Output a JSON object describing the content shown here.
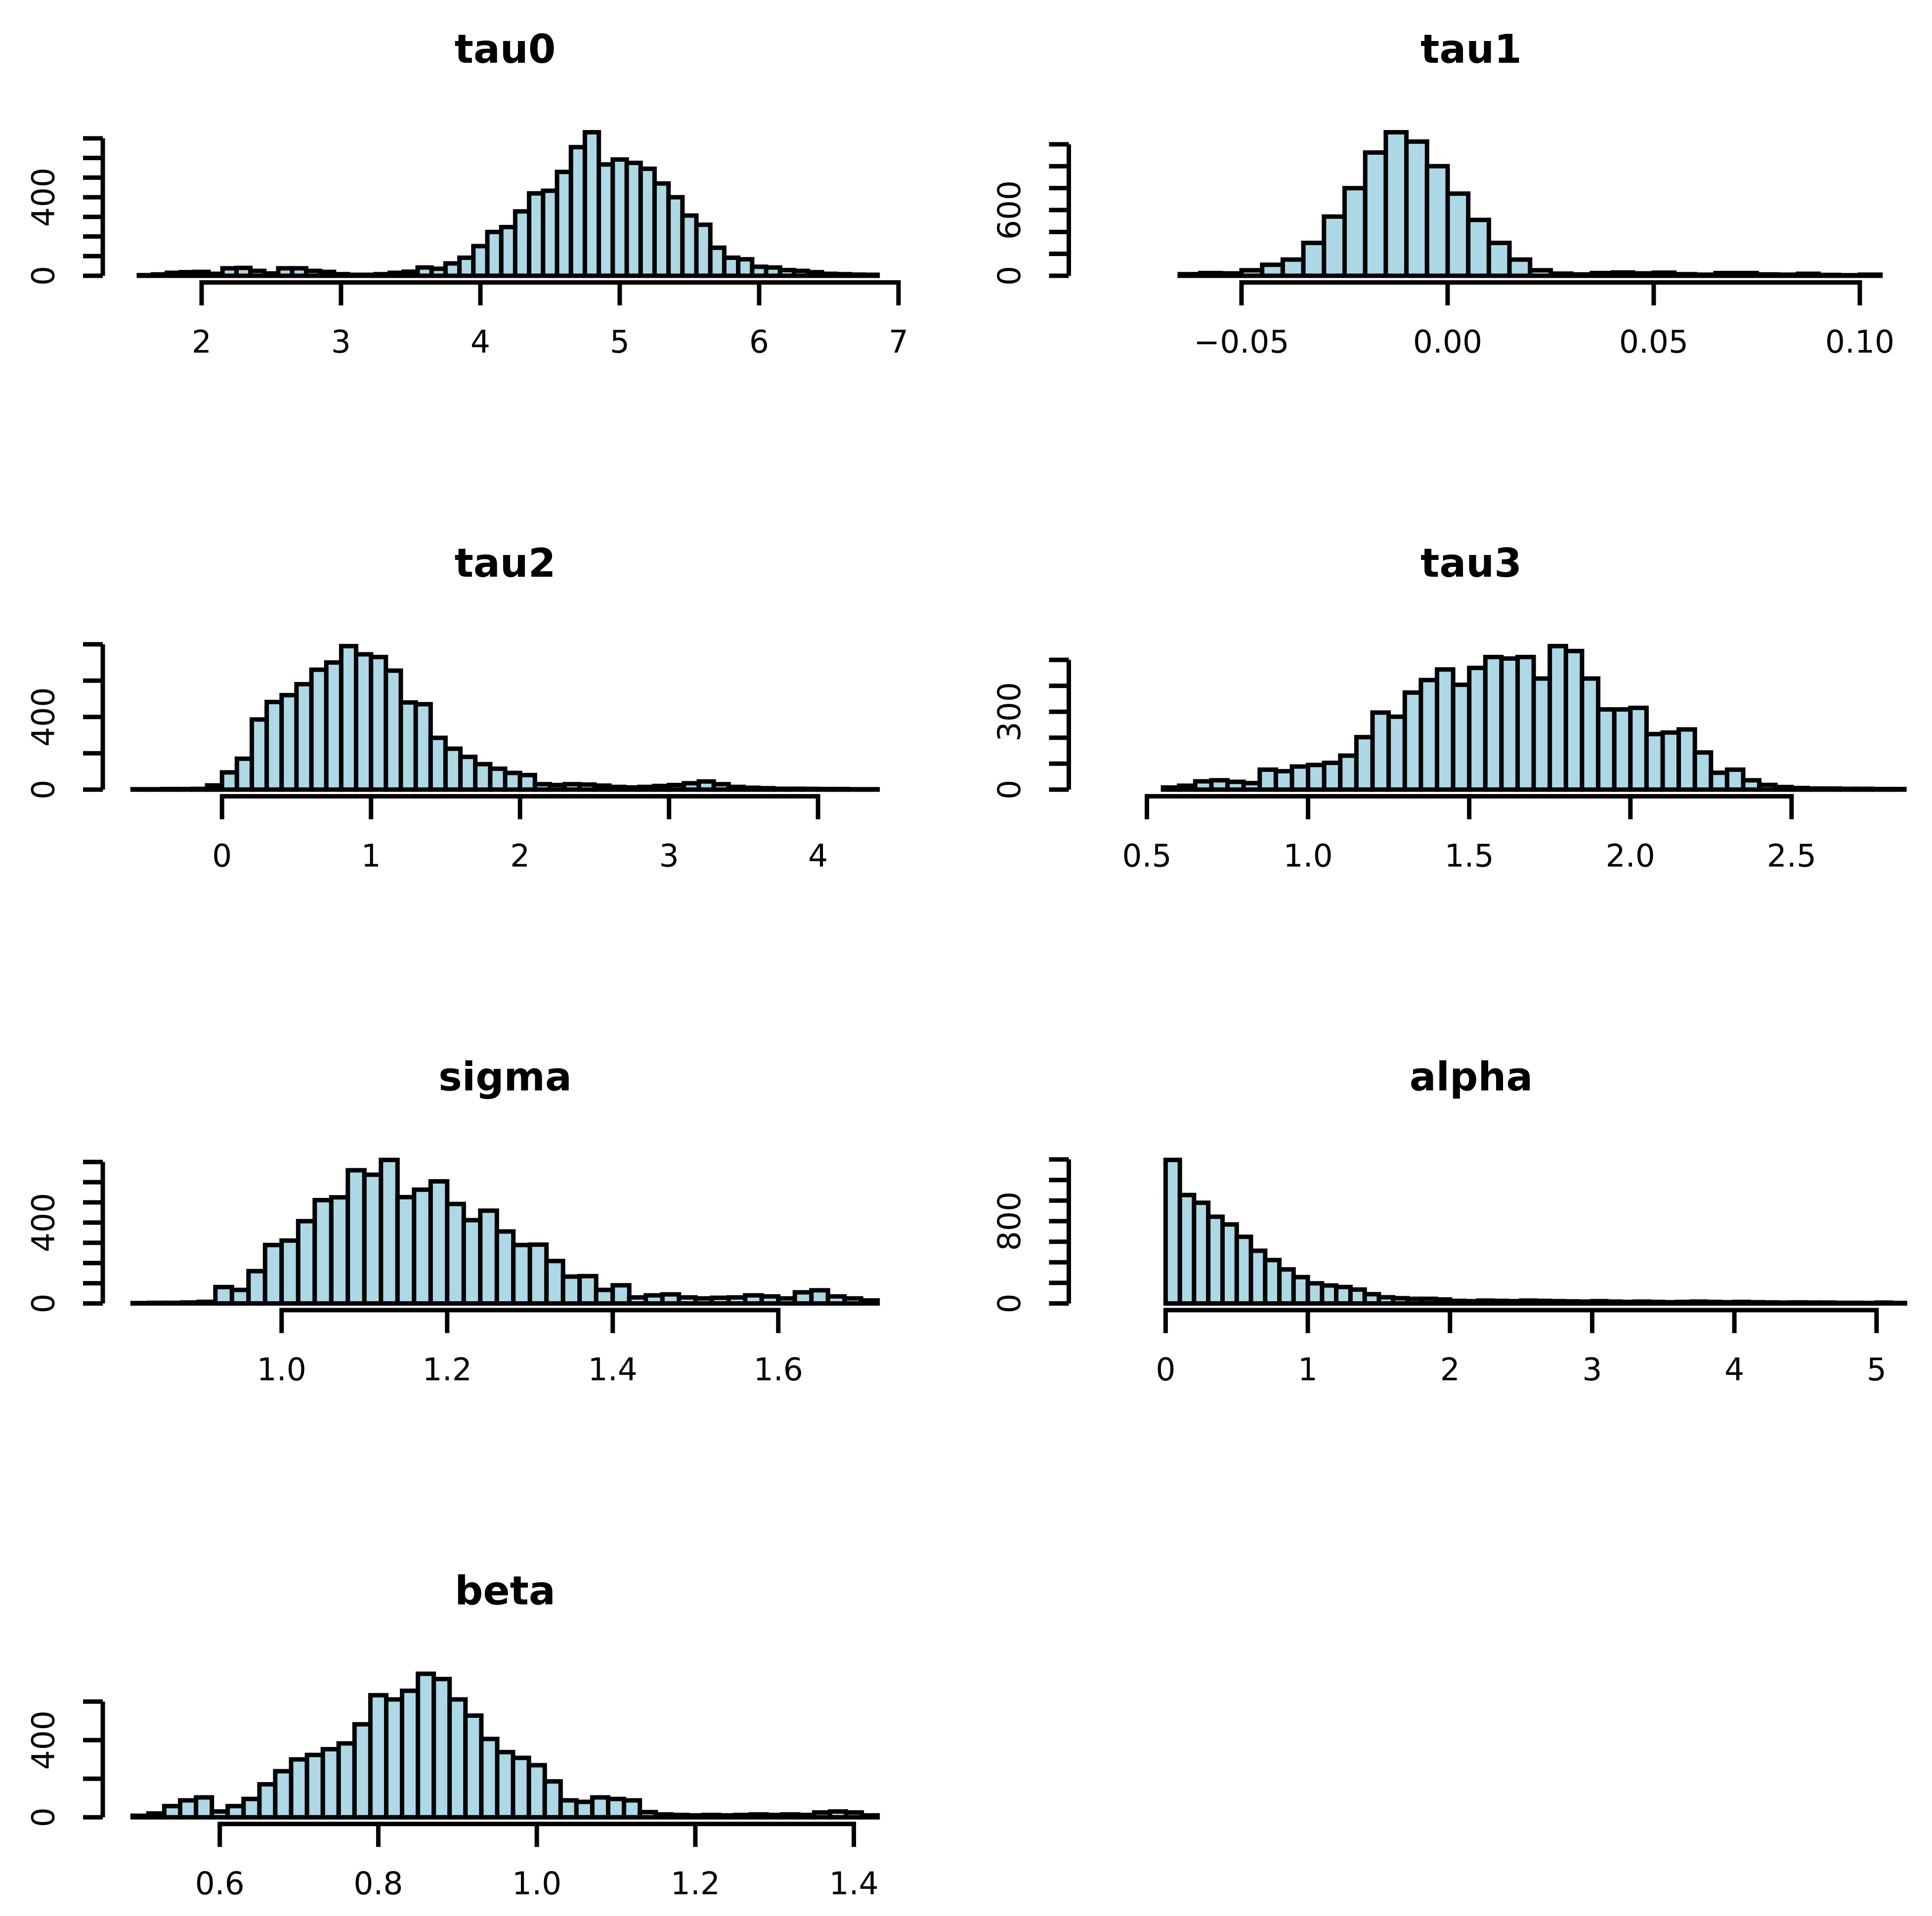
{
  "figure": {
    "background_color": "#ffffff",
    "bar_fill_color": "#ADD8E6",
    "bar_stroke_color": "#000000",
    "axis_color": "#000000",
    "text_color": "#000000"
  },
  "chart_data": [
    {
      "type": "bar",
      "subtype": "histogram",
      "title": "tau0",
      "row": 0,
      "col": 0,
      "bin_start": 1.55,
      "bin_width": 0.1,
      "counts": [
        3,
        7,
        15,
        18,
        20,
        10,
        38,
        40,
        25,
        12,
        38,
        38,
        25,
        20,
        8,
        5,
        5,
        8,
        15,
        21,
        42,
        36,
        63,
        92,
        151,
        223,
        248,
        328,
        420,
        433,
        529,
        655,
        731,
        567,
        592,
        575,
        545,
        470,
        400,
        307,
        260,
        143,
        92,
        84,
        46,
        42,
        29,
        25,
        18,
        10,
        8,
        6,
        5
      ],
      "xlim": [
        1.291,
        7.064
      ],
      "x_ticks": [
        {
          "v": 2,
          "label": "2"
        },
        {
          "v": 3,
          "label": "3"
        },
        {
          "v": 4,
          "label": "4"
        },
        {
          "v": 5,
          "label": "5"
        },
        {
          "v": 6,
          "label": "6"
        },
        {
          "v": 7,
          "label": "7"
        }
      ],
      "y_tick_step": 100,
      "y_tick_max": 700,
      "y_tick_labels": [
        {
          "v": 0,
          "label": "0"
        },
        {
          "v": 400,
          "label": "400"
        }
      ]
    },
    {
      "type": "bar",
      "subtype": "histogram",
      "title": "tau1",
      "row": 0,
      "col": 1,
      "bin_start": -0.065,
      "bin_width": 0.005,
      "counts": [
        15,
        25,
        22,
        50,
        100,
        148,
        300,
        540,
        800,
        1125,
        1310,
        1225,
        1000,
        750,
        510,
        300,
        148,
        50,
        20,
        12,
        25,
        30,
        22,
        28,
        15,
        10,
        25,
        25,
        12,
        10,
        18,
        8,
        5,
        10
      ],
      "xlim": [
        -0.0919,
        0.1033
      ],
      "x_ticks": [
        {
          "v": -0.05,
          "label": "−0.05"
        },
        {
          "v": 0,
          "label": "0.00"
        },
        {
          "v": 0.05,
          "label": "0.05"
        },
        {
          "v": 0.1,
          "label": "0.10"
        }
      ],
      "y_tick_step": 200,
      "y_tick_max": 1200,
      "y_tick_labels": [
        {
          "v": 0,
          "label": "0"
        },
        {
          "v": 600,
          "label": "600"
        }
      ]
    },
    {
      "type": "bar",
      "subtype": "histogram",
      "title": "tau2",
      "row": 1,
      "col": 0,
      "bin_start": -0.6,
      "bin_width": 0.1,
      "counts": [
        2,
        2,
        3,
        3,
        4,
        23,
        95,
        170,
        386,
        482,
        520,
        580,
        660,
        700,
        790,
        745,
        730,
        655,
        480,
        470,
        285,
        225,
        180,
        140,
        115,
        92,
        80,
        30,
        25,
        30,
        28,
        22,
        15,
        12,
        15,
        20,
        25,
        35,
        45,
        30,
        15,
        10,
        8,
        5,
        5,
        4,
        3,
        3,
        2,
        2
      ],
      "xlim": [
        -0.8,
        4.6
      ],
      "x_ticks": [
        {
          "v": 0,
          "label": "0"
        },
        {
          "v": 1,
          "label": "1"
        },
        {
          "v": 2,
          "label": "2"
        },
        {
          "v": 3,
          "label": "3"
        },
        {
          "v": 4,
          "label": "4"
        }
      ],
      "y_tick_step": 200,
      "y_tick_max": 800,
      "y_tick_labels": [
        {
          "v": 0,
          "label": "0"
        },
        {
          "v": 400,
          "label": "400"
        }
      ]
    },
    {
      "type": "bar",
      "subtype": "histogram",
      "title": "tau3",
      "row": 1,
      "col": 1,
      "bin_start": 0.55,
      "bin_width": 0.05,
      "counts": [
        8,
        15,
        32,
        36,
        30,
        25,
        77,
        71,
        89,
        95,
        103,
        131,
        202,
        297,
        281,
        374,
        422,
        463,
        404,
        469,
        511,
        505,
        511,
        428,
        553,
        534,
        428,
        309,
        309,
        315,
        214,
        220,
        232,
        143,
        65,
        77,
        36,
        18,
        10,
        6,
        4,
        4,
        3,
        3,
        2,
        2
      ],
      "xlim": [
        0.2577,
        2.754
      ],
      "x_ticks": [
        {
          "v": 0.5,
          "label": "0.5"
        },
        {
          "v": 1.0,
          "label": "1.0"
        },
        {
          "v": 1.5,
          "label": "1.5"
        },
        {
          "v": 2.0,
          "label": "2.0"
        },
        {
          "v": 2.5,
          "label": "2.5"
        }
      ],
      "y_tick_step": 100,
      "y_tick_max": 500,
      "y_tick_labels": [
        {
          "v": 0,
          "label": "0"
        },
        {
          "v": 300,
          "label": "300"
        }
      ]
    },
    {
      "type": "bar",
      "subtype": "histogram",
      "title": "sigma",
      "row": 2,
      "col": 0,
      "bin_start": 0.82,
      "bin_width": 0.02,
      "counts": [
        2,
        3,
        3,
        5,
        8,
        81,
        67,
        160,
        289,
        311,
        407,
        511,
        525,
        659,
        637,
        710,
        526,
        563,
        604,
        492,
        412,
        459,
        356,
        289,
        291,
        210,
        133,
        135,
        67,
        90,
        30,
        40,
        45,
        30,
        25,
        28,
        30,
        40,
        35,
        25,
        55,
        65,
        35,
        25,
        15
      ],
      "xlim": [
        0.784,
        1.756
      ],
      "x_ticks": [
        {
          "v": 1.0,
          "label": "1.0"
        },
        {
          "v": 1.2,
          "label": "1.2"
        },
        {
          "v": 1.4,
          "label": "1.4"
        },
        {
          "v": 1.6,
          "label": "1.6"
        }
      ],
      "y_tick_step": 100,
      "y_tick_max": 700,
      "y_tick_labels": [
        {
          "v": 0,
          "label": "0"
        },
        {
          "v": 400,
          "label": "400"
        }
      ]
    },
    {
      "type": "bar",
      "subtype": "histogram",
      "title": "alpha",
      "row": 2,
      "col": 1,
      "bin_start": 0.0,
      "bin_width": 0.1,
      "counts": [
        1395,
        1054,
        979,
        843,
        768,
        648,
        512,
        422,
        331,
        256,
        196,
        175,
        160,
        135,
        90,
        60,
        51,
        45,
        45,
        39,
        25,
        22,
        28,
        25,
        22,
        28,
        25,
        22,
        20,
        18,
        22,
        18,
        15,
        18,
        15,
        12,
        15,
        18,
        15,
        12,
        15,
        12,
        10,
        8,
        10,
        8,
        8,
        6,
        6,
        5,
        8,
        5
      ],
      "xlim": [
        -0.681,
        4.978
      ],
      "x_ticks": [
        {
          "v": 0,
          "label": "0"
        },
        {
          "v": 1,
          "label": "1"
        },
        {
          "v": 2,
          "label": "2"
        },
        {
          "v": 3,
          "label": "3"
        },
        {
          "v": 4,
          "label": "4"
        },
        {
          "v": 5,
          "label": "5"
        }
      ],
      "y_tick_step": 200,
      "y_tick_max": 1400,
      "y_tick_labels": [
        {
          "v": 0,
          "label": "0"
        },
        {
          "v": 800,
          "label": "800"
        }
      ]
    },
    {
      "type": "bar",
      "subtype": "histogram",
      "title": "beta",
      "row": 3,
      "col": 0,
      "bin_start": 0.49,
      "bin_width": 0.02,
      "counts": [
        8,
        20,
        58,
        88,
        103,
        30,
        58,
        95,
        171,
        239,
        300,
        323,
        353,
        383,
        482,
        633,
        611,
        656,
        744,
        717,
        611,
        527,
        406,
        338,
        308,
        270,
        186,
        88,
        80,
        103,
        95,
        88,
        27,
        15,
        12,
        10,
        12,
        10,
        12,
        15,
        12,
        15,
        12,
        25,
        30,
        25,
        10
      ],
      "xlim": [
        0.4524,
        1.4676
      ],
      "x_ticks": [
        {
          "v": 0.6,
          "label": "0.6"
        },
        {
          "v": 0.8,
          "label": "0.8"
        },
        {
          "v": 1.0,
          "label": "1.0"
        },
        {
          "v": 1.2,
          "label": "1.2"
        },
        {
          "v": 1.4,
          "label": "1.4"
        }
      ],
      "y_tick_step": 200,
      "y_tick_max": 600,
      "y_tick_labels": [
        {
          "v": 0,
          "label": "0"
        },
        {
          "v": 400,
          "label": "400"
        }
      ]
    }
  ]
}
